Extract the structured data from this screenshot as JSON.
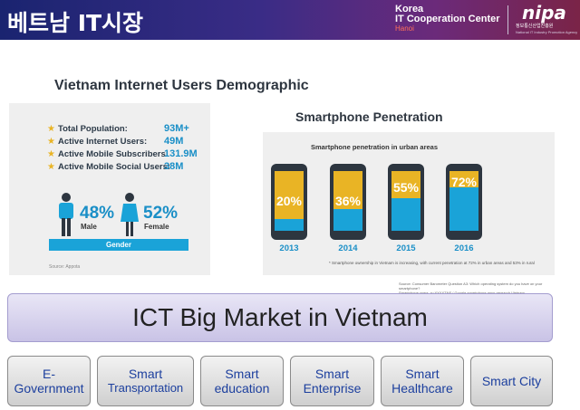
{
  "header": {
    "title": "베트남 IT시장",
    "org_line1": "Korea",
    "org_line2": "IT Cooperation Center",
    "org_line3": "Hanoi",
    "logo": "nipa",
    "logo_sub": "정보통신산업진흥원",
    "logo_sub2": "National IT Industry Promotion Agency"
  },
  "demographic": {
    "heading": "Vietnam Internet Users Demographic",
    "stats": [
      {
        "label": "Total Population:",
        "value": "93M+"
      },
      {
        "label": "Active Internet Users:",
        "value": "49M"
      },
      {
        "label": "Active Mobile Subscribers:",
        "value": "131.9M"
      },
      {
        "label": "Active Mobile Social Users:",
        "value": "38M"
      }
    ],
    "male_pct": "48%",
    "male_label": "Male",
    "female_pct": "52%",
    "female_label": "Female",
    "gender_label": "Gender",
    "source": "Source: Appota"
  },
  "smartphone": {
    "heading": "Smartphone Penetration",
    "caption": "Smartphone penetration in urban areas",
    "note": "* Smartphone ownership in Vietnam is increasing, with current penetration at 72% in urban areas and 53% in rural",
    "source_line1": "Source: Consumer Barometer Question A3: Which operating system do you have on your smartphone?",
    "source_line2": "Smartphone users, n=XXXXTNS / Google smartphone apps research Vietnam"
  },
  "chart_data": {
    "type": "bar",
    "title": "Smartphone penetration in urban areas",
    "categories": [
      "2013",
      "2014",
      "2015",
      "2016"
    ],
    "values": [
      20,
      36,
      55,
      72
    ],
    "ylim": [
      0,
      100
    ]
  },
  "banner": {
    "title": "ICT Big Market in Vietnam"
  },
  "categories": [
    {
      "line1": "E-",
      "line2": "Government"
    },
    {
      "line1": "Smart",
      "line2": "Transportation"
    },
    {
      "line1": "Smart",
      "line2": "education"
    },
    {
      "line1": "Smart",
      "line2": "Enterprise"
    },
    {
      "line1": "Smart",
      "line2": "Healthcare"
    },
    {
      "line1": "Smart City",
      "line2": ""
    }
  ],
  "colors": {
    "accent": "#1a8fc7",
    "yellow": "#e9b425",
    "phone_blue": "#1aa3d8"
  }
}
